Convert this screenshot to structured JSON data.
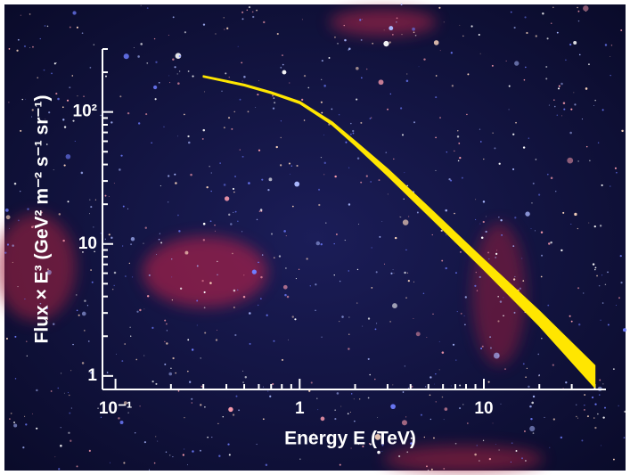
{
  "chart_data": {
    "type": "band",
    "x_label": "Energy E (TeV)",
    "y_label": "Flux × E³ (GeV² m⁻² s⁻¹ sr⁻¹)",
    "log_x": true,
    "log_y": true,
    "xlim": [
      0.085,
      46
    ],
    "ylim": [
      0.79,
      300
    ],
    "xticks": [
      {
        "value": 0.1,
        "label": "10⁻¹"
      },
      1,
      10
    ],
    "yticks": [
      1,
      10,
      {
        "value": 100,
        "label": "10²"
      }
    ],
    "minor_xticks": [
      0.2,
      0.3,
      0.4,
      0.5,
      0.6,
      0.7,
      0.8,
      0.9,
      2,
      3,
      4,
      5,
      6,
      7,
      8,
      9,
      20,
      30,
      40
    ],
    "minor_yticks": [
      2,
      3,
      4,
      5,
      6,
      7,
      8,
      9,
      20,
      30,
      40,
      50,
      60,
      70,
      80,
      90,
      200,
      300
    ],
    "color": "#ffe600",
    "x": [
      0.3,
      0.5,
      0.7,
      1,
      1.5,
      2,
      3,
      5,
      10,
      20,
      40
    ],
    "upper": [
      188,
      162,
      142,
      120,
      84,
      60,
      37,
      19,
      7.6,
      3.1,
      1.2
    ],
    "lower": [
      184,
      158,
      138,
      116,
      80,
      56,
      33,
      16.5,
      6.4,
      2.4,
      0.82
    ]
  }
}
